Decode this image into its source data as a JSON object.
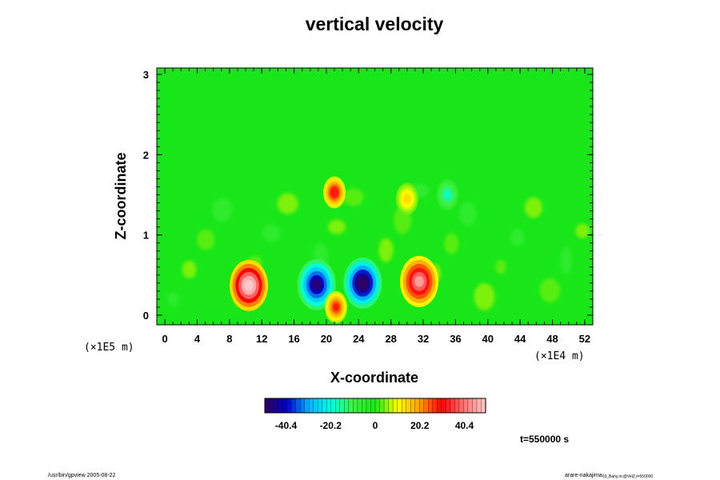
{
  "chart_data": {
    "type": "heatmap",
    "title": "vertical velocity",
    "xlabel": "X-coordinate",
    "ylabel": "Z-coordinate",
    "x_scale_note": "(×1E4 m)",
    "y_scale_note": "(×1E5 m)",
    "xlim": [
      -1,
      53
    ],
    "ylim": [
      -0.12,
      3.08
    ],
    "x_ticks": [
      "0",
      "4",
      "8",
      "12",
      "16",
      "20",
      "24",
      "28",
      "32",
      "36",
      "40",
      "44",
      "48",
      "52"
    ],
    "x_tick_values": [
      0,
      4,
      8,
      12,
      16,
      20,
      24,
      28,
      32,
      36,
      40,
      44,
      48,
      52
    ],
    "y_ticks": [
      "0",
      "1",
      "2",
      "3"
    ],
    "y_tick_values": [
      0,
      1,
      2,
      3
    ],
    "colorbar": {
      "range": [
        -50,
        50
      ],
      "tick_values": [
        -40.4,
        -20.2,
        0,
        20.2,
        40.4
      ],
      "tick_labels": [
        "-40.4",
        "-20.2",
        "0",
        "20.2",
        "40.4"
      ]
    },
    "features": [
      {
        "kind": "updraft",
        "x": 10.4,
        "z": 0.37,
        "peak": 55
      },
      {
        "kind": "downdraft",
        "x": 18.8,
        "z": 0.38,
        "peak": -48
      },
      {
        "kind": "updraft",
        "x": 21.0,
        "z": 1.53,
        "peak": 32
      },
      {
        "kind": "updraft",
        "x": 21.2,
        "z": 0.1,
        "peak": 28
      },
      {
        "kind": "downdraft",
        "x": 24.5,
        "z": 0.4,
        "peak": -55
      },
      {
        "kind": "updraft",
        "x": 31.5,
        "z": 0.42,
        "peak": 45
      },
      {
        "kind": "downdraft",
        "x": 35.0,
        "z": 1.5,
        "peak": -18
      },
      {
        "kind": "updraft",
        "x": 30.0,
        "z": 1.45,
        "peak": 14
      }
    ]
  },
  "footer": {
    "left": "/usr/bin/gpview 2005-08-22",
    "right_main": "arare-nakajima",
    "right_sub": "03_Bany.nc@VelZ,t=550000"
  },
  "time_label": "t=550000 s",
  "colors": {
    "background": "#18e618",
    "colormap": [
      "#300060",
      "#0000c8",
      "#00b4ff",
      "#00ffe0",
      "#40f040",
      "#18e618",
      "#ffff00",
      "#ffa000",
      "#ff0000",
      "#ff7070",
      "#ffc8c8"
    ]
  }
}
